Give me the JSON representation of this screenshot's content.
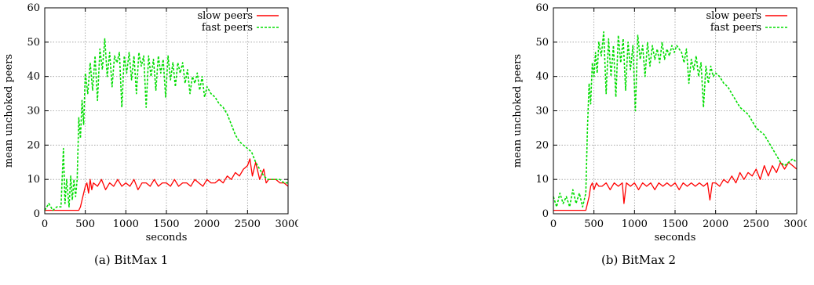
{
  "chart_data": [
    {
      "type": "line",
      "caption": "(a) BitMax 1",
      "xlabel": "seconds",
      "ylabel": "mean unchoked peers",
      "xlim": [
        0,
        3000
      ],
      "ylim": [
        0,
        60
      ],
      "xticks": [
        0,
        500,
        1000,
        1500,
        2000,
        2500,
        3000
      ],
      "yticks": [
        0,
        10,
        20,
        30,
        40,
        50,
        60
      ],
      "grid": true,
      "legend": "top-right",
      "series": [
        {
          "name": "slow peers",
          "color": "#ff0000",
          "style": "solid",
          "x": [
            0,
            50,
            100,
            150,
            200,
            250,
            300,
            350,
            400,
            420,
            440,
            460,
            480,
            500,
            520,
            540,
            560,
            580,
            600,
            650,
            700,
            750,
            800,
            850,
            900,
            950,
            1000,
            1050,
            1100,
            1150,
            1200,
            1250,
            1300,
            1350,
            1400,
            1450,
            1500,
            1550,
            1600,
            1650,
            1700,
            1750,
            1800,
            1850,
            1900,
            1950,
            2000,
            2050,
            2100,
            2150,
            2200,
            2250,
            2300,
            2350,
            2400,
            2450,
            2500,
            2530,
            2560,
            2600,
            2650,
            2700,
            2730,
            2760,
            2800,
            2850,
            2900,
            2950,
            3000
          ],
          "values": [
            1,
            1,
            1,
            1,
            1,
            1,
            1,
            1,
            1,
            1,
            2,
            4,
            6,
            8,
            9,
            6,
            10,
            7,
            9,
            8,
            10,
            7,
            9,
            8,
            10,
            8,
            9,
            8,
            10,
            7,
            9,
            9,
            8,
            10,
            8,
            9,
            9,
            8,
            10,
            8,
            9,
            9,
            8,
            10,
            9,
            8,
            10,
            9,
            9,
            10,
            9,
            11,
            10,
            12,
            11,
            13,
            14,
            16,
            11,
            15,
            10,
            13,
            9,
            10,
            10,
            10,
            9,
            9,
            8
          ]
        },
        {
          "name": "fast peers",
          "color": "#00dd00",
          "style": "dashed",
          "x": [
            0,
            50,
            100,
            150,
            200,
            230,
            250,
            270,
            300,
            320,
            340,
            360,
            380,
            400,
            420,
            440,
            460,
            480,
            500,
            530,
            560,
            590,
            620,
            650,
            680,
            710,
            740,
            770,
            800,
            830,
            860,
            890,
            920,
            950,
            980,
            1010,
            1040,
            1070,
            1100,
            1130,
            1160,
            1190,
            1220,
            1250,
            1280,
            1310,
            1340,
            1370,
            1400,
            1430,
            1460,
            1490,
            1520,
            1550,
            1580,
            1610,
            1640,
            1670,
            1700,
            1730,
            1760,
            1790,
            1820,
            1850,
            1880,
            1910,
            1940,
            1970,
            2000,
            2050,
            2100,
            2150,
            2200,
            2250,
            2300,
            2350,
            2400,
            2450,
            2500,
            2550,
            2600,
            2650,
            2700,
            2750,
            2800,
            2850,
            2900,
            2950,
            3000
          ],
          "values": [
            1,
            3,
            1,
            2,
            2,
            19,
            3,
            10,
            2,
            11,
            4,
            10,
            5,
            10,
            28,
            22,
            33,
            26,
            41,
            35,
            44,
            36,
            46,
            33,
            48,
            42,
            51,
            40,
            47,
            37,
            46,
            44,
            47,
            31,
            46,
            41,
            47,
            39,
            46,
            35,
            47,
            43,
            46,
            31,
            46,
            40,
            45,
            36,
            46,
            41,
            45,
            34,
            46,
            39,
            44,
            37,
            44,
            41,
            44,
            38,
            42,
            35,
            40,
            38,
            41,
            36,
            40,
            34,
            37,
            35,
            34,
            32,
            31,
            29,
            26,
            23,
            21,
            20,
            19,
            18,
            15,
            13,
            11,
            10,
            10,
            10,
            10,
            9,
            9
          ]
        }
      ]
    },
    {
      "type": "line",
      "caption": "(b) BitMax 2",
      "xlabel": "seconds",
      "ylabel": "mean unchoked peers",
      "xlim": [
        0,
        3000
      ],
      "ylim": [
        0,
        60
      ],
      "xticks": [
        0,
        500,
        1000,
        1500,
        2000,
        2500,
        3000
      ],
      "yticks": [
        0,
        10,
        20,
        30,
        40,
        50,
        60
      ],
      "grid": true,
      "legend": "top-right",
      "series": [
        {
          "name": "slow peers",
          "color": "#ff0000",
          "style": "solid",
          "x": [
            0,
            50,
            100,
            150,
            200,
            250,
            300,
            350,
            400,
            420,
            440,
            460,
            480,
            500,
            530,
            560,
            600,
            650,
            700,
            750,
            800,
            850,
            870,
            900,
            950,
            1000,
            1050,
            1100,
            1150,
            1200,
            1250,
            1300,
            1350,
            1400,
            1450,
            1500,
            1550,
            1600,
            1650,
            1700,
            1750,
            1800,
            1850,
            1900,
            1930,
            1960,
            2000,
            2050,
            2100,
            2150,
            2200,
            2250,
            2300,
            2350,
            2400,
            2450,
            2500,
            2550,
            2600,
            2650,
            2700,
            2750,
            2800,
            2850,
            2900,
            2950,
            3000
          ],
          "values": [
            1,
            1,
            1,
            1,
            1,
            1,
            1,
            1,
            1,
            3,
            5,
            8,
            9,
            7,
            9,
            8,
            8,
            9,
            7,
            9,
            8,
            9,
            3,
            9,
            8,
            9,
            7,
            9,
            8,
            9,
            7,
            9,
            8,
            9,
            8,
            9,
            7,
            9,
            8,
            9,
            8,
            9,
            8,
            9,
            4,
            9,
            9,
            8,
            10,
            9,
            11,
            9,
            12,
            10,
            12,
            11,
            13,
            10,
            14,
            11,
            14,
            12,
            15,
            13,
            15,
            14,
            13
          ]
        },
        {
          "name": "fast peers",
          "color": "#00dd00",
          "style": "dashed",
          "x": [
            0,
            40,
            80,
            120,
            160,
            200,
            240,
            280,
            320,
            360,
            400,
            420,
            440,
            460,
            480,
            500,
            520,
            540,
            560,
            590,
            620,
            650,
            680,
            710,
            740,
            770,
            800,
            830,
            860,
            890,
            920,
            950,
            980,
            1010,
            1040,
            1070,
            1100,
            1130,
            1160,
            1190,
            1220,
            1250,
            1280,
            1310,
            1340,
            1370,
            1400,
            1430,
            1460,
            1490,
            1520,
            1550,
            1580,
            1610,
            1640,
            1670,
            1700,
            1730,
            1760,
            1790,
            1820,
            1850,
            1880,
            1910,
            1940,
            1970,
            2000,
            2050,
            2100,
            2150,
            2200,
            2250,
            2300,
            2350,
            2400,
            2450,
            2500,
            2550,
            2600,
            2650,
            2700,
            2750,
            2800,
            2850,
            2900,
            2950,
            3000
          ],
          "values": [
            5,
            2,
            6,
            3,
            5,
            2,
            7,
            3,
            6,
            2,
            6,
            25,
            38,
            32,
            44,
            40,
            47,
            41,
            50,
            46,
            53,
            35,
            51,
            40,
            49,
            34,
            52,
            44,
            51,
            36,
            50,
            42,
            49,
            30,
            52,
            45,
            49,
            40,
            50,
            43,
            49,
            45,
            48,
            44,
            50,
            45,
            48,
            46,
            49,
            47,
            49,
            48,
            47,
            44,
            48,
            38,
            45,
            42,
            46,
            40,
            44,
            31,
            43,
            38,
            43,
            40,
            41,
            40,
            38,
            37,
            35,
            33,
            31,
            30,
            29,
            27,
            25,
            24,
            23,
            21,
            19,
            17,
            15,
            14,
            15,
            16,
            15
          ]
        }
      ]
    }
  ]
}
